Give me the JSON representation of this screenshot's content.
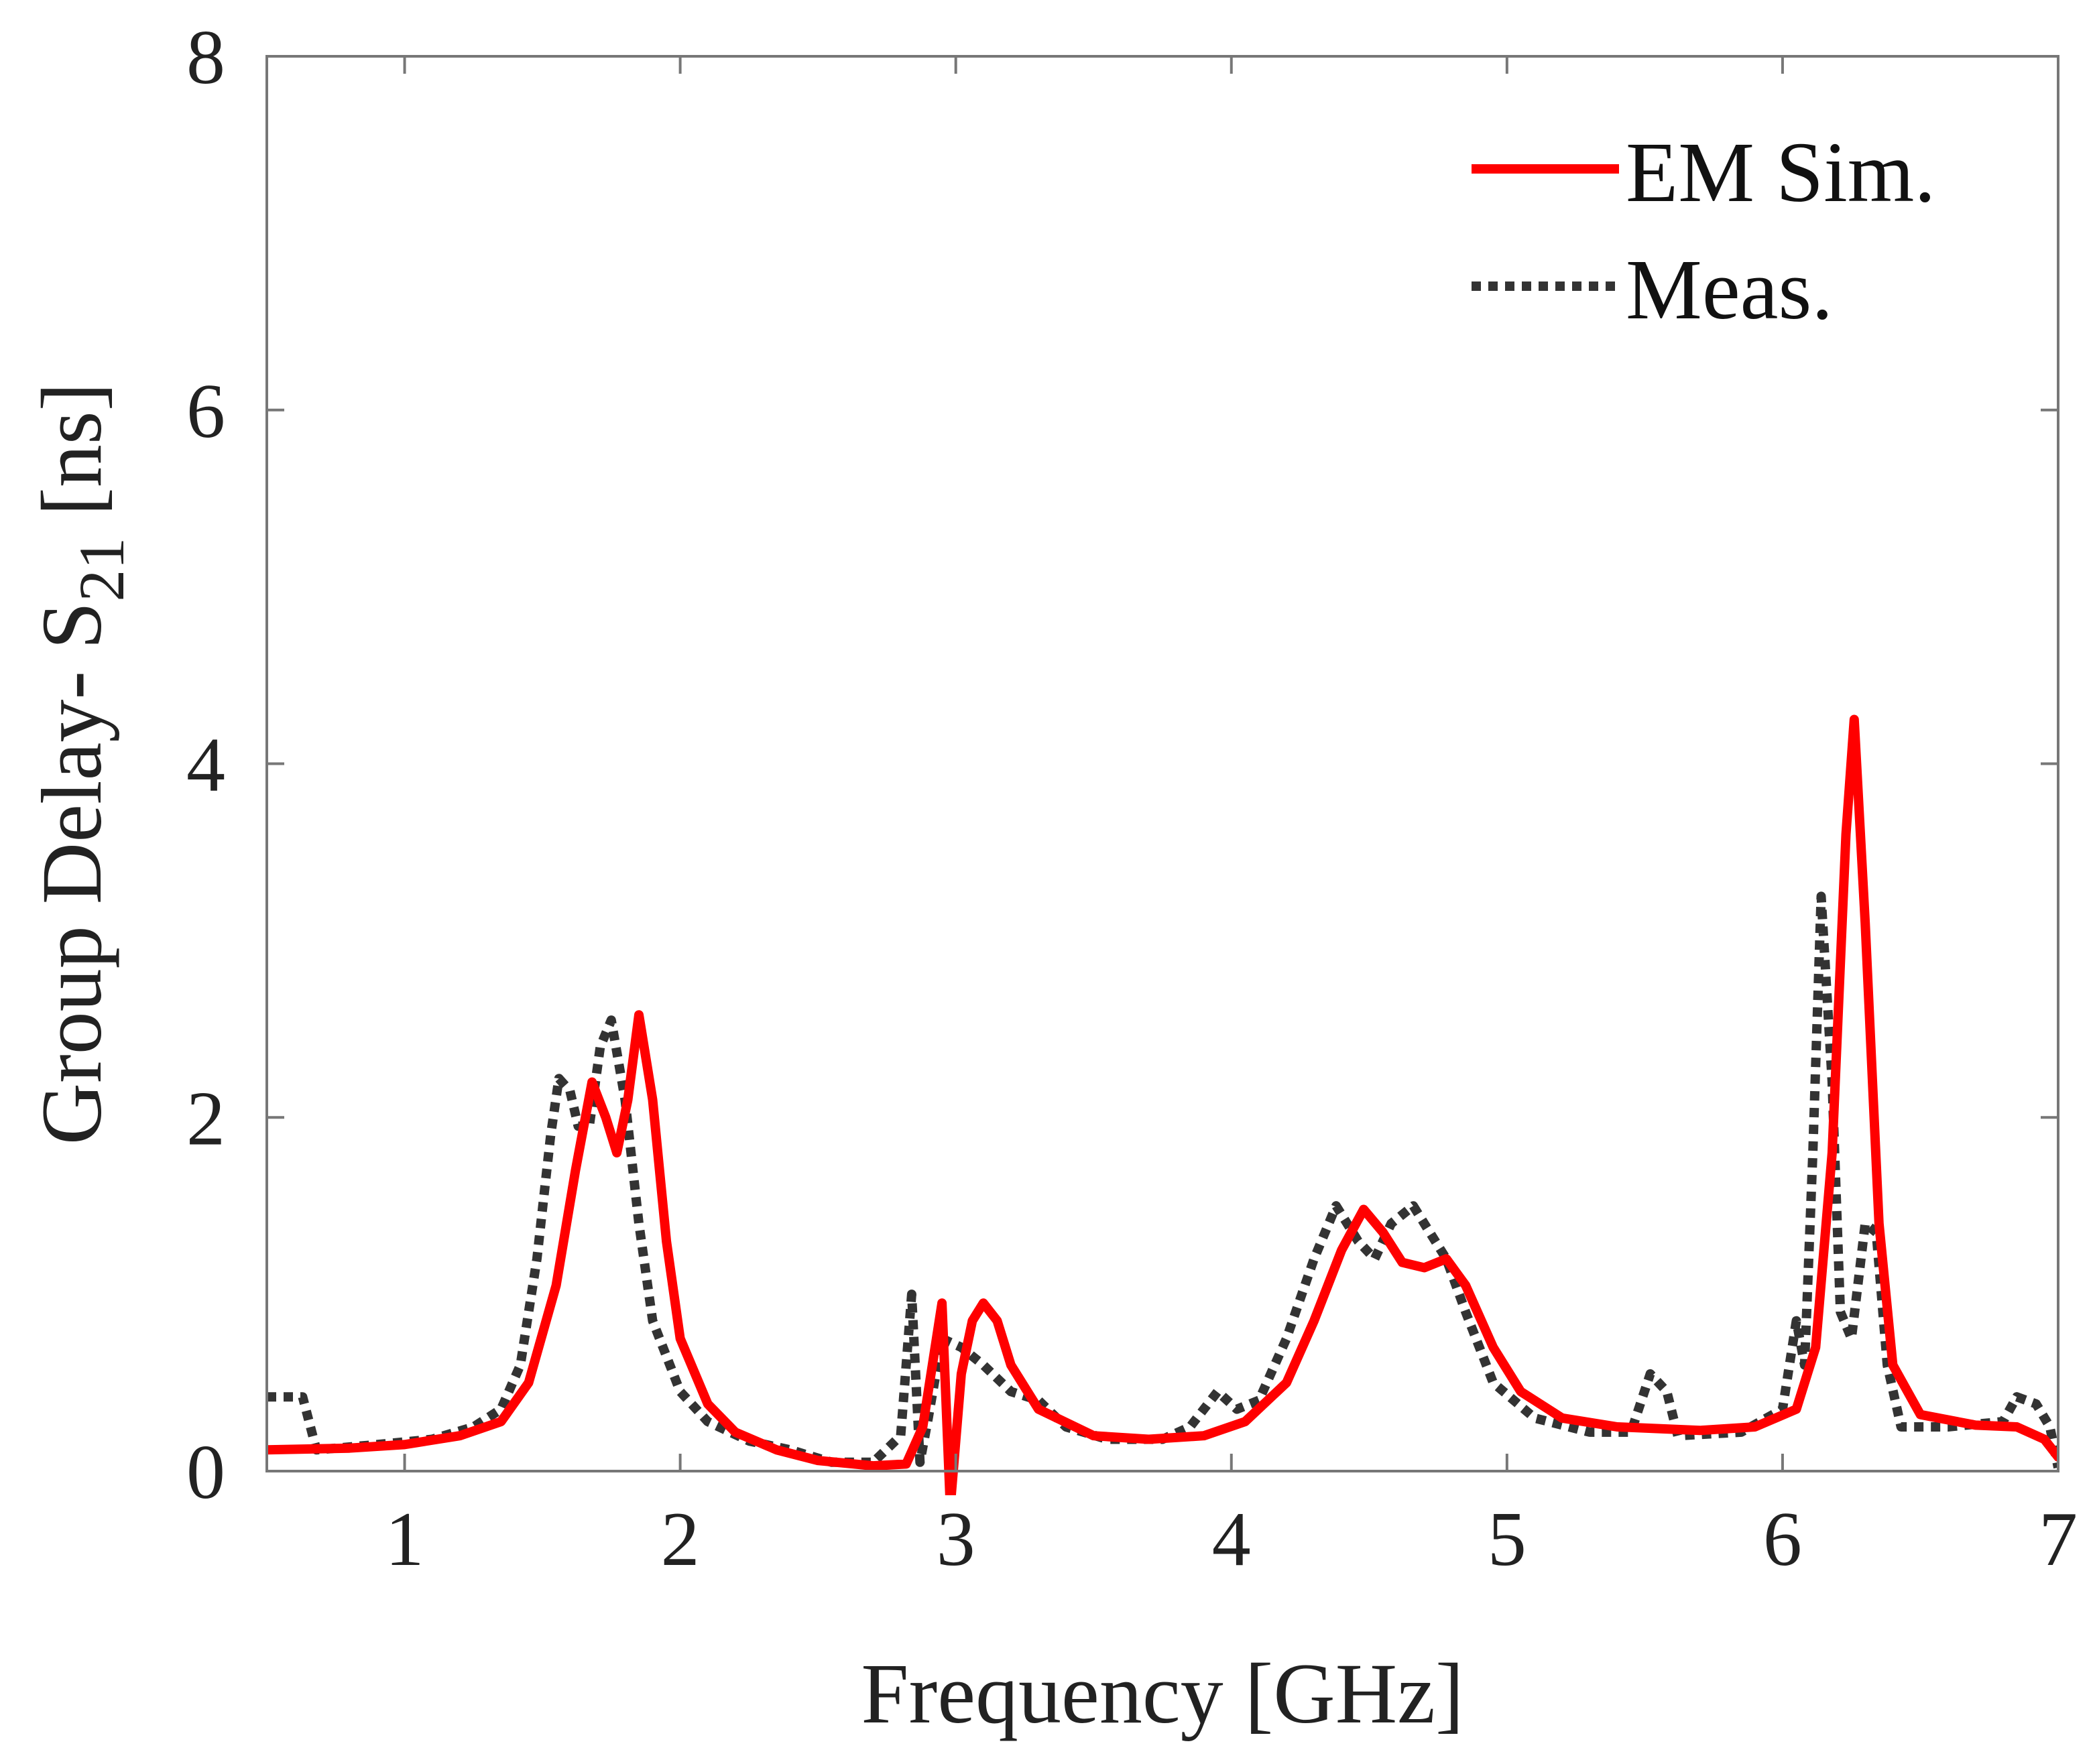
{
  "chart_data": {
    "type": "line",
    "title": "",
    "xlabel": "Frequency [GHz]",
    "ylabel": {
      "main": "Group Delay- S",
      "subscript": "21",
      "unit": " [ns]"
    },
    "xlim": [
      0.5,
      7
    ],
    "ylim": [
      0,
      8
    ],
    "xticks": [
      1,
      2,
      3,
      4,
      5,
      6,
      7
    ],
    "yticks": [
      0,
      2,
      4,
      6,
      8
    ],
    "grid": false,
    "legend_position": "top-right",
    "series": [
      {
        "name": "EM Sim.",
        "color": "#ff0000",
        "style": "solid",
        "points": [
          [
            0.5,
            0.12
          ],
          [
            0.8,
            0.13
          ],
          [
            1.0,
            0.15
          ],
          [
            1.2,
            0.2
          ],
          [
            1.35,
            0.28
          ],
          [
            1.45,
            0.5
          ],
          [
            1.55,
            1.05
          ],
          [
            1.62,
            1.7
          ],
          [
            1.68,
            2.2
          ],
          [
            1.73,
            2.0
          ],
          [
            1.77,
            1.8
          ],
          [
            1.81,
            2.1
          ],
          [
            1.85,
            2.58
          ],
          [
            1.9,
            2.1
          ],
          [
            1.95,
            1.3
          ],
          [
            2.0,
            0.75
          ],
          [
            2.1,
            0.38
          ],
          [
            2.2,
            0.22
          ],
          [
            2.35,
            0.12
          ],
          [
            2.5,
            0.06
          ],
          [
            2.7,
            0.03
          ],
          [
            2.82,
            0.04
          ],
          [
            2.88,
            0.25
          ],
          [
            2.95,
            0.95
          ],
          [
            2.98,
            -0.2
          ],
          [
            3.02,
            0.55
          ],
          [
            3.06,
            0.85
          ],
          [
            3.1,
            0.95
          ],
          [
            3.15,
            0.85
          ],
          [
            3.2,
            0.6
          ],
          [
            3.3,
            0.35
          ],
          [
            3.5,
            0.2
          ],
          [
            3.7,
            0.18
          ],
          [
            3.9,
            0.2
          ],
          [
            4.05,
            0.28
          ],
          [
            4.2,
            0.5
          ],
          [
            4.3,
            0.85
          ],
          [
            4.4,
            1.25
          ],
          [
            4.48,
            1.48
          ],
          [
            4.55,
            1.35
          ],
          [
            4.62,
            1.18
          ],
          [
            4.7,
            1.15
          ],
          [
            4.78,
            1.2
          ],
          [
            4.85,
            1.05
          ],
          [
            4.95,
            0.7
          ],
          [
            5.05,
            0.45
          ],
          [
            5.2,
            0.3
          ],
          [
            5.4,
            0.25
          ],
          [
            5.7,
            0.23
          ],
          [
            5.9,
            0.25
          ],
          [
            6.05,
            0.35
          ],
          [
            6.12,
            0.7
          ],
          [
            6.18,
            1.8
          ],
          [
            6.23,
            3.6
          ],
          [
            6.26,
            4.25
          ],
          [
            6.3,
            3.1
          ],
          [
            6.35,
            1.4
          ],
          [
            6.4,
            0.6
          ],
          [
            6.5,
            0.32
          ],
          [
            6.7,
            0.26
          ],
          [
            6.85,
            0.25
          ],
          [
            6.95,
            0.18
          ],
          [
            7.0,
            0.08
          ]
        ]
      },
      {
        "name": "Meas.",
        "color": "#333333",
        "style": "dotted",
        "points": [
          [
            0.5,
            0.42
          ],
          [
            0.63,
            0.42
          ],
          [
            0.68,
            0.12
          ],
          [
            0.9,
            0.15
          ],
          [
            1.1,
            0.18
          ],
          [
            1.25,
            0.25
          ],
          [
            1.35,
            0.35
          ],
          [
            1.42,
            0.6
          ],
          [
            1.48,
            1.2
          ],
          [
            1.53,
            1.9
          ],
          [
            1.56,
            2.22
          ],
          [
            1.6,
            2.15
          ],
          [
            1.63,
            1.95
          ],
          [
            1.67,
            1.95
          ],
          [
            1.71,
            2.4
          ],
          [
            1.75,
            2.55
          ],
          [
            1.8,
            2.1
          ],
          [
            1.85,
            1.4
          ],
          [
            1.9,
            0.85
          ],
          [
            2.0,
            0.45
          ],
          [
            2.1,
            0.28
          ],
          [
            2.25,
            0.17
          ],
          [
            2.4,
            0.12
          ],
          [
            2.55,
            0.05
          ],
          [
            2.7,
            0.05
          ],
          [
            2.8,
            0.2
          ],
          [
            2.84,
            1.0
          ],
          [
            2.87,
            0.05
          ],
          [
            2.9,
            0.3
          ],
          [
            2.95,
            0.75
          ],
          [
            3.02,
            0.7
          ],
          [
            3.1,
            0.6
          ],
          [
            3.2,
            0.45
          ],
          [
            3.3,
            0.4
          ],
          [
            3.4,
            0.25
          ],
          [
            3.55,
            0.18
          ],
          [
            3.75,
            0.18
          ],
          [
            3.85,
            0.25
          ],
          [
            3.95,
            0.45
          ],
          [
            4.02,
            0.35
          ],
          [
            4.1,
            0.4
          ],
          [
            4.2,
            0.75
          ],
          [
            4.3,
            1.2
          ],
          [
            4.38,
            1.5
          ],
          [
            4.46,
            1.3
          ],
          [
            4.52,
            1.2
          ],
          [
            4.58,
            1.4
          ],
          [
            4.66,
            1.5
          ],
          [
            4.72,
            1.35
          ],
          [
            4.78,
            1.2
          ],
          [
            4.85,
            0.9
          ],
          [
            4.95,
            0.5
          ],
          [
            5.1,
            0.3
          ],
          [
            5.3,
            0.22
          ],
          [
            5.45,
            0.22
          ],
          [
            5.52,
            0.55
          ],
          [
            5.58,
            0.45
          ],
          [
            5.62,
            0.2
          ],
          [
            5.85,
            0.22
          ],
          [
            6.0,
            0.35
          ],
          [
            6.05,
            0.85
          ],
          [
            6.08,
            0.6
          ],
          [
            6.11,
            1.8
          ],
          [
            6.14,
            3.25
          ],
          [
            6.18,
            2.2
          ],
          [
            6.21,
            0.9
          ],
          [
            6.25,
            0.75
          ],
          [
            6.3,
            1.4
          ],
          [
            6.34,
            1.35
          ],
          [
            6.38,
            0.6
          ],
          [
            6.43,
            0.25
          ],
          [
            6.6,
            0.25
          ],
          [
            6.8,
            0.28
          ],
          [
            6.85,
            0.42
          ],
          [
            6.92,
            0.38
          ],
          [
            6.97,
            0.25
          ],
          [
            7.0,
            0.02
          ]
        ]
      }
    ]
  }
}
